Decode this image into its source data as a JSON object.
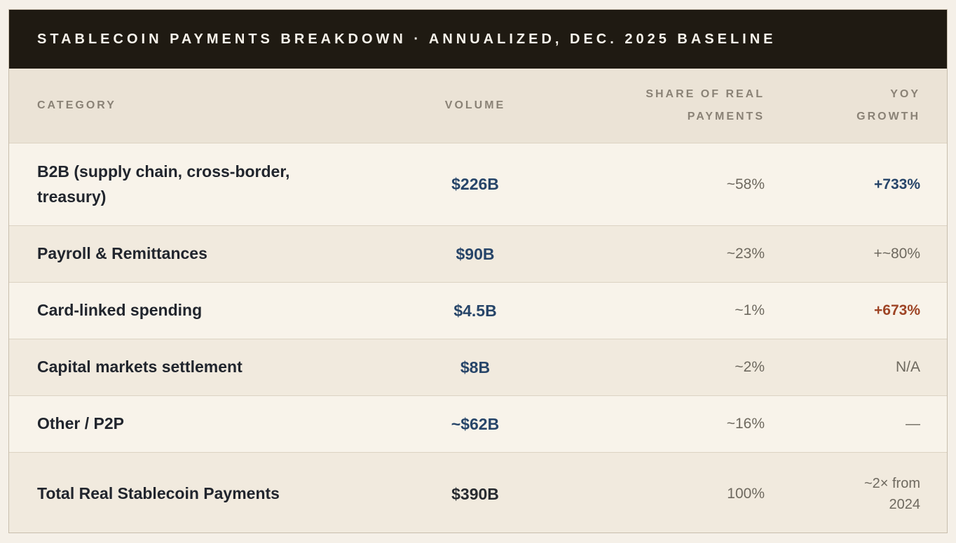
{
  "title": "STABLECOIN PAYMENTS BREAKDOWN · ANNUALIZED, DEC. 2025 BASELINE",
  "columns": {
    "category": "CATEGORY",
    "volume": "VOLUME",
    "share": "SHARE OF REAL PAYMENTS",
    "yoy": "YOY GROWTH"
  },
  "rows": [
    {
      "category": "B2B (supply chain, cross-border, treasury)",
      "volume": "$226B",
      "share": "~58%",
      "yoy": "+733%"
    },
    {
      "category": "Payroll & Remittances",
      "volume": "$90B",
      "share": "~23%",
      "yoy": "+~80%"
    },
    {
      "category": "Card-linked spending",
      "volume": "$4.5B",
      "share": "~1%",
      "yoy": "+673%"
    },
    {
      "category": "Capital markets settlement",
      "volume": "$8B",
      "share": "~2%",
      "yoy": "N/A"
    },
    {
      "category": "Other / P2P",
      "volume": "~$62B",
      "share": "~16%",
      "yoy": "—"
    },
    {
      "category": "Total Real Stablecoin Payments",
      "volume": "$390B",
      "share": "100%",
      "yoy": "~2× from 2024"
    }
  ],
  "colors": {
    "title_bar_bg": "#1f1a12",
    "title_text": "#f7f3eb",
    "header_row_bg": "#ebe3d6",
    "row_light_bg": "#f8f3ea",
    "row_dark_bg": "#f1eade",
    "card_border": "#c8bead",
    "row_separator": "#dcd3c3",
    "category_text": "#21252d",
    "muted_text": "#6e695f",
    "header_label_text": "#8a8276",
    "navy_accent": "#274569",
    "red_accent": "#9e4425"
  },
  "chart_data": {
    "type": "table",
    "title": "Stablecoin Payments Breakdown · Annualized, Dec. 2025 Baseline",
    "columns": [
      "Category",
      "Volume",
      "Share of Real Payments",
      "YoY Growth"
    ],
    "rows": [
      [
        "B2B (supply chain, cross-border, treasury)",
        "$226B",
        "~58%",
        "+733%"
      ],
      [
        "Payroll & Remittances",
        "$90B",
        "~23%",
        "+~80%"
      ],
      [
        "Card-linked spending",
        "$4.5B",
        "~1%",
        "+673%"
      ],
      [
        "Capital markets settlement",
        "$8B",
        "~2%",
        "N/A"
      ],
      [
        "Other / P2P",
        "~$62B",
        "~16%",
        "—"
      ],
      [
        "Total Real Stablecoin Payments",
        "$390B",
        "100%",
        "~2× from 2024"
      ]
    ],
    "values_numeric": {
      "volume_billions_usd": [
        226,
        90,
        4.5,
        8,
        62,
        390
      ],
      "share_of_real_payments_pct": [
        58,
        23,
        1,
        2,
        16,
        100
      ],
      "yoy_growth_pct": [
        733,
        80,
        673,
        null,
        null,
        100
      ]
    }
  }
}
